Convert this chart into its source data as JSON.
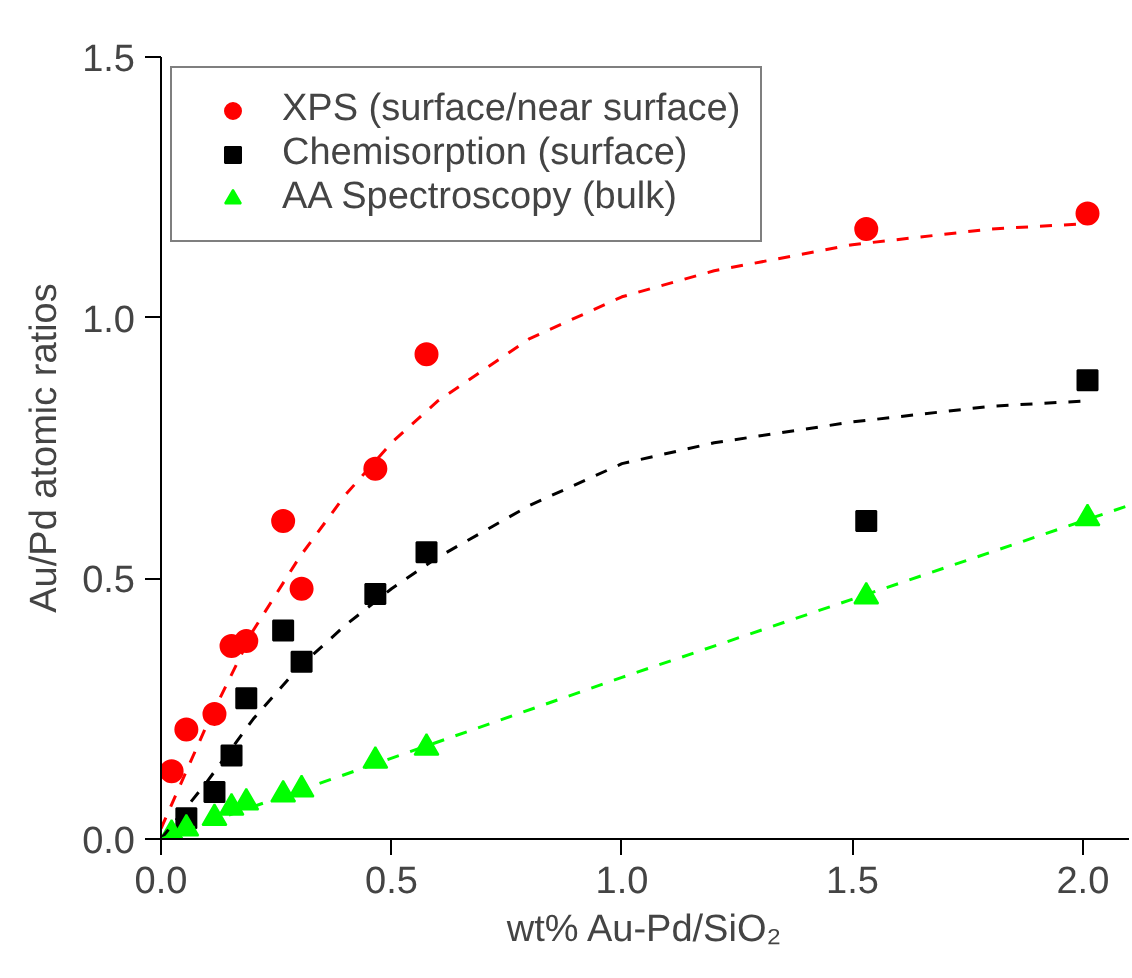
{
  "chart_data": {
    "type": "scatter",
    "xlabel": "wt% Au-Pd/SiO₂",
    "ylabel": "Au/Pd atomic ratios",
    "xlim": [
      0,
      2.1
    ],
    "ylim": [
      0,
      1.5
    ],
    "xticks": [
      {
        "value": 0,
        "label": "0.0"
      },
      0.5,
      {
        "value": 1,
        "label": "1.0"
      },
      1.5,
      {
        "value": 2,
        "label": "2.0"
      }
    ],
    "yticks": [
      {
        "value": 0,
        "label": "0.0"
      },
      0.5,
      {
        "value": 1,
        "label": "1.0"
      },
      1.5
    ],
    "grid": false,
    "legend": "top left",
    "series": [
      {
        "name": "XPS (surface/near surface)",
        "color": "#ff0000",
        "marker": "circle",
        "x": [
          0.023,
          0.055,
          0.116,
          0.153,
          0.185,
          0.265,
          0.305,
          0.465,
          0.576,
          1.53,
          2.01
        ],
        "values": [
          0.13,
          0.21,
          0.24,
          0.37,
          0.38,
          0.61,
          0.48,
          0.71,
          0.93,
          1.17,
          1.2
        ]
      },
      {
        "name": "Chemisorption (surface)",
        "color": "#000000",
        "marker": "square",
        "x": [
          0.055,
          0.116,
          0.153,
          0.185,
          0.265,
          0.305,
          0.465,
          0.576,
          1.53,
          2.01
        ],
        "values": [
          0.04,
          0.09,
          0.16,
          0.27,
          0.4,
          0.34,
          0.47,
          0.55,
          0.61,
          0.88
        ]
      },
      {
        "name": "AA Spectroscopy (bulk)",
        "color": "#00ff00",
        "marker": "triangle",
        "x": [
          0.023,
          0.055,
          0.116,
          0.153,
          0.185,
          0.265,
          0.305,
          0.465,
          0.576,
          1.53,
          2.01
        ],
        "values": [
          0.01,
          0.02,
          0.04,
          0.06,
          0.07,
          0.085,
          0.095,
          0.15,
          0.175,
          0.465,
          0.615
        ]
      },
      {
        "type": "line",
        "line_style": "dashed",
        "marker": "none",
        "color": "#ff0000",
        "x": [
          0,
          0.1,
          0.2,
          0.3,
          0.4,
          0.5,
          0.6,
          0.8,
          1.0,
          1.2,
          1.5,
          1.8,
          2.0
        ],
        "values": [
          0.02,
          0.22,
          0.4,
          0.54,
          0.66,
          0.76,
          0.84,
          0.96,
          1.04,
          1.09,
          1.14,
          1.17,
          1.18
        ]
      },
      {
        "type": "line",
        "line_style": "dashed",
        "marker": "none",
        "color": "#000000",
        "x": [
          0,
          0.1,
          0.2,
          0.3,
          0.4,
          0.5,
          0.6,
          0.8,
          1.0,
          1.2,
          1.5,
          1.8,
          2.0
        ],
        "values": [
          0,
          0.11,
          0.23,
          0.33,
          0.41,
          0.48,
          0.54,
          0.64,
          0.72,
          0.76,
          0.8,
          0.83,
          0.84
        ]
      },
      {
        "type": "line",
        "line_style": "dashed",
        "marker": "none",
        "color": "#00ff00",
        "x": [
          0,
          1.0,
          2.1
        ],
        "values": [
          0,
          0.31,
          0.64
        ]
      }
    ]
  }
}
